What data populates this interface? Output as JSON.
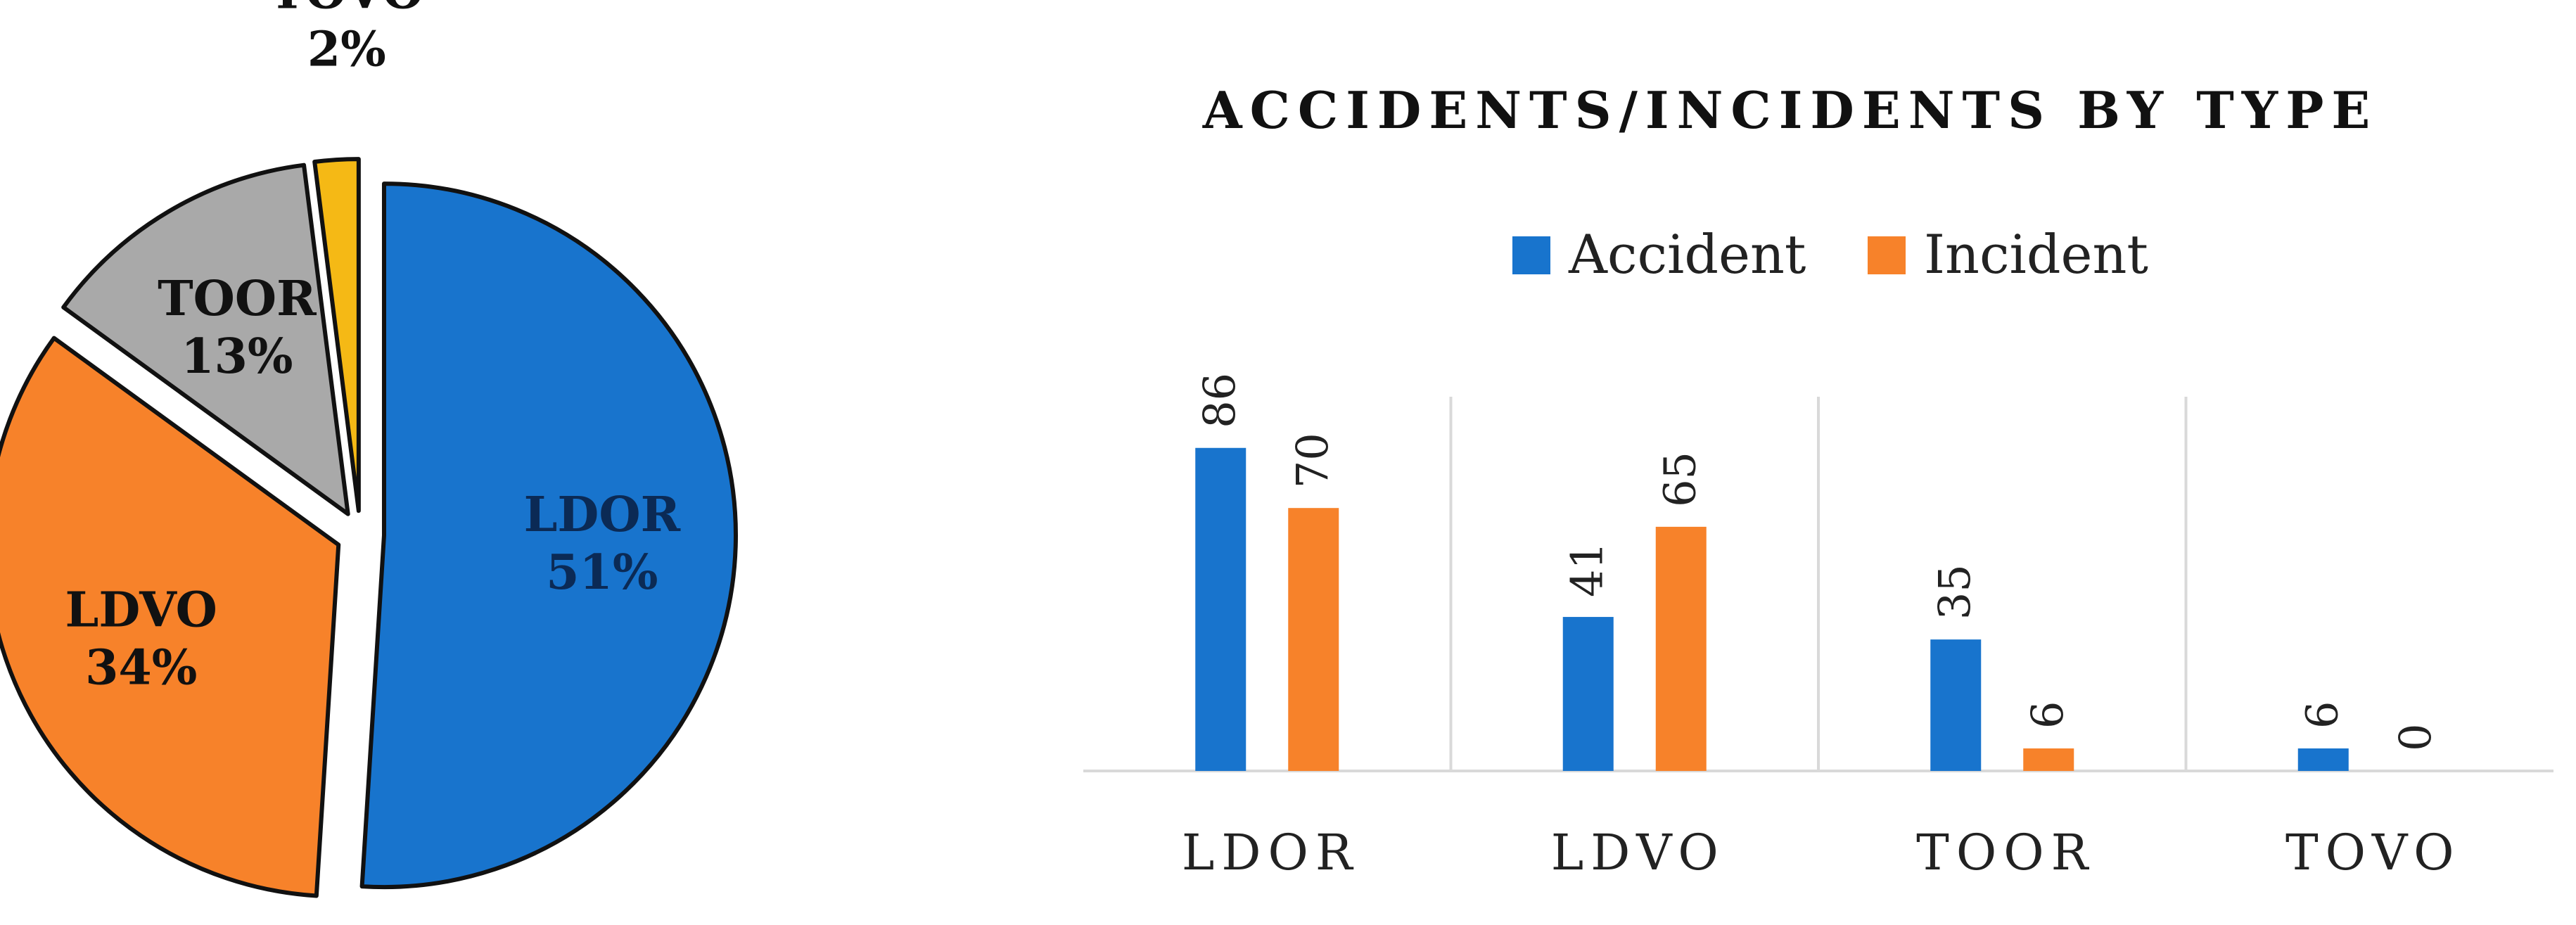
{
  "chart_data": [
    {
      "type": "pie",
      "exploded": true,
      "slices": [
        {
          "label": "LDOR",
          "percent_label": "51%",
          "value": 51,
          "color": "#1874CD"
        },
        {
          "label": "LDVO",
          "percent_label": "34%",
          "value": 34,
          "color": "#F7822A"
        },
        {
          "label": "TOOR",
          "percent_label": "13%",
          "value": 13,
          "color": "#A9A9A9"
        },
        {
          "label": "TOVO",
          "percent_label": "2%",
          "value": 2,
          "color": "#F5B915"
        }
      ]
    },
    {
      "type": "bar",
      "title": "ACCIDENTS/INCIDENTS BY TYPE",
      "categories": [
        "LDOR",
        "LDVO",
        "TOOR",
        "TOVO"
      ],
      "series": [
        {
          "name": "Accident",
          "values": [
            86,
            41,
            35,
            6
          ],
          "color": "#1874CD"
        },
        {
          "name": "Incident",
          "values": [
            70,
            65,
            6,
            0
          ],
          "color": "#F7822A"
        }
      ],
      "legend": "top",
      "grid": false,
      "ylim": [
        0,
        100
      ]
    }
  ]
}
